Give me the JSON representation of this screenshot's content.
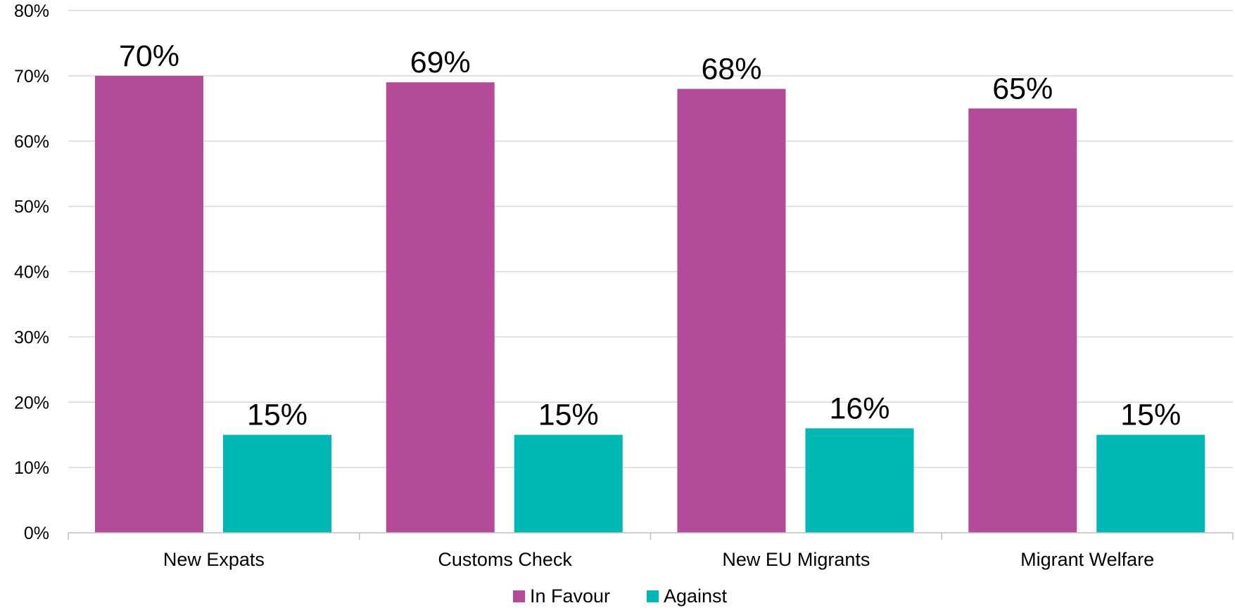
{
  "chart_data": {
    "type": "bar",
    "title": "",
    "xlabel": "",
    "ylabel": "",
    "categories": [
      "New Expats",
      "Customs Check",
      "New EU Migrants",
      "Migrant Welfare"
    ],
    "series": [
      {
        "name": "In Favour",
        "color": "#B44A9A",
        "values": [
          70,
          69,
          68,
          65
        ],
        "labels": [
          "70%",
          "69%",
          "68%",
          "65%"
        ]
      },
      {
        "name": "Against",
        "color": "#00B8B3",
        "values": [
          15,
          15,
          16,
          15
        ],
        "labels": [
          "15%",
          "15%",
          "16%",
          "15%"
        ]
      }
    ],
    "ylim": [
      0,
      80
    ],
    "yticks": [
      0,
      10,
      20,
      30,
      40,
      50,
      60,
      70,
      80
    ],
    "ytick_labels": [
      "0%",
      "10%",
      "20%",
      "30%",
      "40%",
      "50%",
      "60%",
      "70%",
      "80%"
    ],
    "grid": true,
    "legend_position": "bottom",
    "gridline_color": "#D9D9D9",
    "axis_color": "#BFBFBF"
  }
}
